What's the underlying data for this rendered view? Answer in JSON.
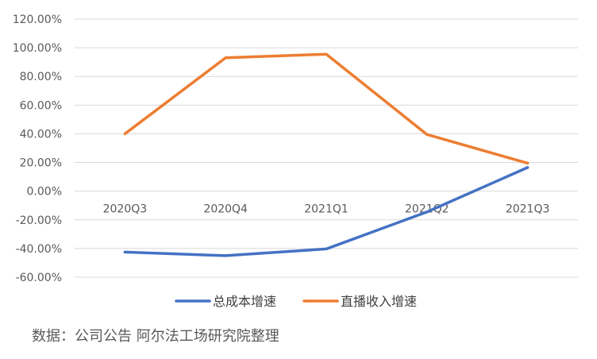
{
  "chart_data": {
    "type": "line",
    "categories": [
      "2020Q3",
      "2020Q4",
      "2021Q1",
      "2021Q2",
      "2021Q3"
    ],
    "series": [
      {
        "name": "总成本增速",
        "color": "#4472C4",
        "values": [
          -42.5,
          -45.0,
          -40.3,
          -14.5,
          16.5
        ]
      },
      {
        "name": "直播收入增速",
        "color": "#ED7D31",
        "values": [
          40.0,
          93.0,
          95.5,
          39.5,
          19.5
        ]
      }
    ],
    "ylim": [
      -60,
      120
    ],
    "y_ticks": [
      "120.00%",
      "100.00%",
      "80.00%",
      "60.00%",
      "40.00%",
      "20.00%",
      "0.00%",
      "-20.00%",
      "-40.00%",
      "-60.00%"
    ],
    "grid": true,
    "legend_position": "bottom"
  },
  "source_note": "数据：公司公告 阿尔法工场研究院整理"
}
